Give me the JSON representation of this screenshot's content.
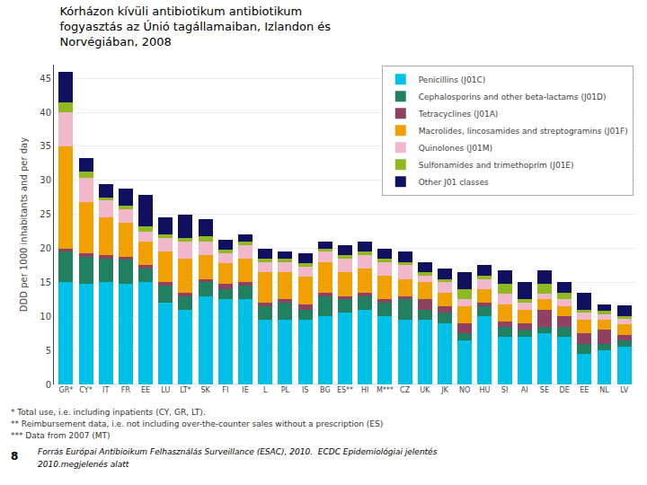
{
  "chart_data": {
    "type": "bar",
    "title": "Kórházon kívüli antibiotikum antibiotikum\nfogyasztás az Únió tagállamaiban, Izlandon és\nNorvégiában, 2008",
    "ylabel": "DDD per 1000 inhabitants and per day",
    "categories": [
      "GR*",
      "CY*",
      "IT",
      "FR",
      "EE",
      "LU",
      "LT*",
      "SK",
      "FI",
      "IE",
      "L",
      "PL",
      "IS",
      "BG",
      "ES**",
      "HI",
      "M***",
      "CZ",
      "UK",
      "JK",
      "NO",
      "HU",
      "SI",
      "AI",
      "SE",
      "DE",
      "EE",
      "NL",
      "LV"
    ],
    "series": [
      {
        "name": "Penicillins (J01C)",
        "color": "#00c0e8",
        "values": [
          15.0,
          14.8,
          15.0,
          14.8,
          15.0,
          12.0,
          11.0,
          13.0,
          12.5,
          12.5,
          9.5,
          9.5,
          9.5,
          10.0,
          10.5,
          11.0,
          10.0,
          9.5,
          9.5,
          9.0,
          6.5,
          10.0,
          7.0,
          7.0,
          7.5,
          7.0,
          4.5,
          5.0,
          5.5
        ]
      },
      {
        "name": "Cephalosporins and other beta-lactams (J01D)",
        "color": "#208060",
        "values": [
          4.5,
          4.0,
          3.5,
          3.5,
          2.0,
          2.5,
          2.0,
          2.0,
          1.5,
          2.0,
          2.0,
          2.5,
          1.5,
          3.0,
          2.0,
          2.0,
          2.0,
          3.0,
          1.5,
          1.5,
          1.0,
          1.5,
          1.5,
          1.0,
          1.0,
          1.5,
          1.5,
          1.0,
          1.0
        ]
      },
      {
        "name": "Tetracyclines (J01A)",
        "color": "#904060",
        "values": [
          0.5,
          0.5,
          0.5,
          0.5,
          0.5,
          0.5,
          0.5,
          0.5,
          0.8,
          0.5,
          0.5,
          0.5,
          0.8,
          0.5,
          0.5,
          0.5,
          0.5,
          0.5,
          1.5,
          1.0,
          1.5,
          0.5,
          0.8,
          1.0,
          2.5,
          1.5,
          1.5,
          2.0,
          0.8
        ]
      },
      {
        "name": "Macrolides, lincosamides and streptogramins (J01F)",
        "color": "#f0a000",
        "values": [
          15.0,
          7.5,
          5.5,
          5.0,
          3.5,
          4.5,
          5.0,
          3.5,
          3.0,
          3.5,
          4.5,
          4.0,
          4.0,
          4.5,
          3.5,
          3.5,
          3.5,
          2.5,
          2.5,
          2.0,
          2.5,
          2.0,
          2.5,
          2.0,
          1.5,
          1.5,
          2.0,
          1.5,
          1.5
        ]
      },
      {
        "name": "Quinolones (J01M)",
        "color": "#f0b8c8",
        "values": [
          5.0,
          3.5,
          2.5,
          2.0,
          1.5,
          2.0,
          2.5,
          2.0,
          1.5,
          2.0,
          1.5,
          1.5,
          1.5,
          1.5,
          2.0,
          2.0,
          2.0,
          2.0,
          1.0,
          1.5,
          1.0,
          1.5,
          1.5,
          1.0,
          0.8,
          1.0,
          1.0,
          0.8,
          0.8
        ]
      },
      {
        "name": "Sulfonamides and trimethoprim (J01E)",
        "color": "#90b820",
        "values": [
          1.5,
          1.0,
          0.5,
          0.5,
          0.8,
          0.5,
          0.5,
          0.8,
          0.5,
          0.5,
          0.5,
          0.5,
          0.5,
          0.5,
          0.5,
          0.5,
          0.5,
          0.5,
          0.5,
          0.5,
          1.5,
          0.5,
          1.5,
          0.5,
          1.5,
          1.0,
          0.5,
          0.5,
          0.5
        ]
      },
      {
        "name": "Other J01 classes",
        "color": "#101060",
        "values": [
          4.5,
          2.0,
          2.0,
          2.5,
          4.5,
          2.5,
          3.5,
          2.5,
          1.5,
          1.0,
          1.5,
          1.0,
          1.5,
          1.0,
          1.5,
          1.5,
          1.5,
          1.5,
          1.5,
          1.5,
          2.5,
          1.5,
          2.0,
          2.5,
          2.0,
          1.5,
          2.5,
          1.0,
          1.5
        ]
      }
    ],
    "ylim": [
      0,
      47
    ],
    "yticks": [
      0,
      5,
      10,
      15,
      20,
      25,
      30,
      35,
      40,
      45
    ],
    "grid": true,
    "legend": "upper right",
    "stacked": true,
    "annotations": [
      "* Total use, i.e. including inpatients (CY, GR, LT).",
      "** Reimbursement data, i.e. not including over-the-counter sales without a prescription (ES)",
      "*** Data from 2007 (MT)",
      "8",
      "Forrás Európai Antibioikum Felhasználás Surveillance (ESAC), 2010.  ECDC Epidemiológiai jelentés",
      "2010.megjelenés alatt"
    ]
  }
}
